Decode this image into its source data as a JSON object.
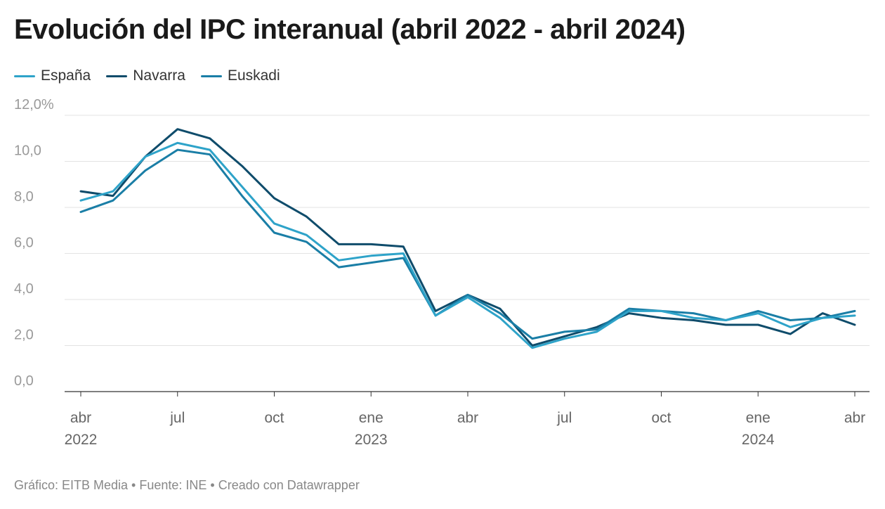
{
  "chart_data": {
    "type": "line",
    "title": "Evolución del IPC interanual (abril 2022 - abril 2024)",
    "xlabel": "",
    "ylabel": "",
    "ylim": [
      0,
      12
    ],
    "yticks": [
      "0,0",
      "2,0",
      "4,0",
      "6,0",
      "8,0",
      "10,0",
      "12,0%"
    ],
    "xticks": [
      {
        "month_index": 0,
        "label": "abr",
        "year": "2022"
      },
      {
        "month_index": 3,
        "label": "jul",
        "year": ""
      },
      {
        "month_index": 6,
        "label": "oct",
        "year": ""
      },
      {
        "month_index": 9,
        "label": "ene",
        "year": "2023"
      },
      {
        "month_index": 12,
        "label": "abr",
        "year": ""
      },
      {
        "month_index": 15,
        "label": "jul",
        "year": ""
      },
      {
        "month_index": 18,
        "label": "oct",
        "year": ""
      },
      {
        "month_index": 21,
        "label": "ene",
        "year": "2024"
      },
      {
        "month_index": 24,
        "label": "abr",
        "year": ""
      }
    ],
    "categories": [
      "abr 2022",
      "may 2022",
      "jun 2022",
      "jul 2022",
      "ago 2022",
      "sep 2022",
      "oct 2022",
      "nov 2022",
      "dic 2022",
      "ene 2023",
      "feb 2023",
      "mar 2023",
      "abr 2023",
      "may 2023",
      "jun 2023",
      "jul 2023",
      "ago 2023",
      "sep 2023",
      "oct 2023",
      "nov 2023",
      "dic 2023",
      "ene 2024",
      "feb 2024",
      "mar 2024",
      "abr 2024"
    ],
    "series": [
      {
        "name": "España",
        "color": "#2ea3c9",
        "values": [
          8.3,
          8.7,
          10.2,
          10.8,
          10.5,
          8.9,
          7.3,
          6.8,
          5.7,
          5.9,
          6.0,
          3.3,
          4.1,
          3.2,
          1.9,
          2.3,
          2.6,
          3.5,
          3.5,
          3.2,
          3.1,
          3.4,
          2.8,
          3.2,
          3.3
        ]
      },
      {
        "name": "Navarra",
        "color": "#0f4c6b",
        "values": [
          8.7,
          8.5,
          10.2,
          11.4,
          11.0,
          9.8,
          8.4,
          7.6,
          6.4,
          6.4,
          6.3,
          3.5,
          4.2,
          3.6,
          2.0,
          2.4,
          2.8,
          3.4,
          3.2,
          3.1,
          2.9,
          2.9,
          2.5,
          3.4,
          2.9
        ]
      },
      {
        "name": "Euskadi",
        "color": "#1a7ea6",
        "values": [
          7.8,
          8.3,
          9.6,
          10.5,
          10.3,
          8.5,
          6.9,
          6.5,
          5.4,
          5.6,
          5.8,
          3.3,
          4.2,
          3.4,
          2.3,
          2.6,
          2.7,
          3.6,
          3.5,
          3.4,
          3.1,
          3.5,
          3.1,
          3.2,
          3.5
        ]
      }
    ]
  },
  "footer": {
    "text": "Gráfico: EITB Media • Fuente: INE • Creado con Datawrapper"
  }
}
